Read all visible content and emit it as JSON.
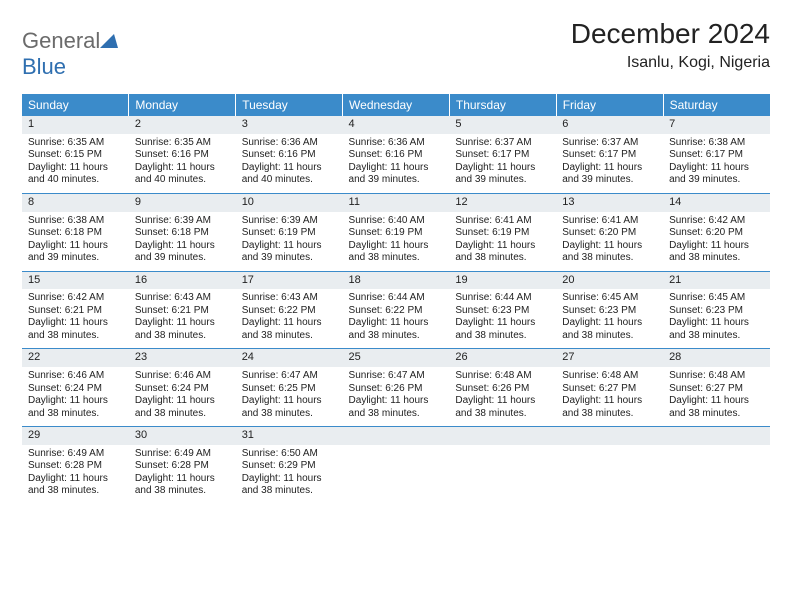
{
  "brand": {
    "part1": "General",
    "part2": "Blue"
  },
  "title": "December 2024",
  "location": "Isanlu, Kogi, Nigeria",
  "colors": {
    "header_bg": "#3b8bca",
    "header_fg": "#ffffff",
    "daynum_bg": "#e9edf0",
    "row_border": "#3b8bca",
    "brand_gray": "#6b6b6b",
    "brand_blue": "#2f6fb0"
  },
  "fonts": {
    "title_size": 28,
    "location_size": 16,
    "header_size": 12,
    "cell_size": 10
  },
  "day_headers": [
    "Sunday",
    "Monday",
    "Tuesday",
    "Wednesday",
    "Thursday",
    "Friday",
    "Saturday"
  ],
  "weeks": [
    [
      {
        "n": "1",
        "sr": "Sunrise: 6:35 AM",
        "ss": "Sunset: 6:15 PM",
        "d1": "Daylight: 11 hours",
        "d2": "and 40 minutes."
      },
      {
        "n": "2",
        "sr": "Sunrise: 6:35 AM",
        "ss": "Sunset: 6:16 PM",
        "d1": "Daylight: 11 hours",
        "d2": "and 40 minutes."
      },
      {
        "n": "3",
        "sr": "Sunrise: 6:36 AM",
        "ss": "Sunset: 6:16 PM",
        "d1": "Daylight: 11 hours",
        "d2": "and 40 minutes."
      },
      {
        "n": "4",
        "sr": "Sunrise: 6:36 AM",
        "ss": "Sunset: 6:16 PM",
        "d1": "Daylight: 11 hours",
        "d2": "and 39 minutes."
      },
      {
        "n": "5",
        "sr": "Sunrise: 6:37 AM",
        "ss": "Sunset: 6:17 PM",
        "d1": "Daylight: 11 hours",
        "d2": "and 39 minutes."
      },
      {
        "n": "6",
        "sr": "Sunrise: 6:37 AM",
        "ss": "Sunset: 6:17 PM",
        "d1": "Daylight: 11 hours",
        "d2": "and 39 minutes."
      },
      {
        "n": "7",
        "sr": "Sunrise: 6:38 AM",
        "ss": "Sunset: 6:17 PM",
        "d1": "Daylight: 11 hours",
        "d2": "and 39 minutes."
      }
    ],
    [
      {
        "n": "8",
        "sr": "Sunrise: 6:38 AM",
        "ss": "Sunset: 6:18 PM",
        "d1": "Daylight: 11 hours",
        "d2": "and 39 minutes."
      },
      {
        "n": "9",
        "sr": "Sunrise: 6:39 AM",
        "ss": "Sunset: 6:18 PM",
        "d1": "Daylight: 11 hours",
        "d2": "and 39 minutes."
      },
      {
        "n": "10",
        "sr": "Sunrise: 6:39 AM",
        "ss": "Sunset: 6:19 PM",
        "d1": "Daylight: 11 hours",
        "d2": "and 39 minutes."
      },
      {
        "n": "11",
        "sr": "Sunrise: 6:40 AM",
        "ss": "Sunset: 6:19 PM",
        "d1": "Daylight: 11 hours",
        "d2": "and 38 minutes."
      },
      {
        "n": "12",
        "sr": "Sunrise: 6:41 AM",
        "ss": "Sunset: 6:19 PM",
        "d1": "Daylight: 11 hours",
        "d2": "and 38 minutes."
      },
      {
        "n": "13",
        "sr": "Sunrise: 6:41 AM",
        "ss": "Sunset: 6:20 PM",
        "d1": "Daylight: 11 hours",
        "d2": "and 38 minutes."
      },
      {
        "n": "14",
        "sr": "Sunrise: 6:42 AM",
        "ss": "Sunset: 6:20 PM",
        "d1": "Daylight: 11 hours",
        "d2": "and 38 minutes."
      }
    ],
    [
      {
        "n": "15",
        "sr": "Sunrise: 6:42 AM",
        "ss": "Sunset: 6:21 PM",
        "d1": "Daylight: 11 hours",
        "d2": "and 38 minutes."
      },
      {
        "n": "16",
        "sr": "Sunrise: 6:43 AM",
        "ss": "Sunset: 6:21 PM",
        "d1": "Daylight: 11 hours",
        "d2": "and 38 minutes."
      },
      {
        "n": "17",
        "sr": "Sunrise: 6:43 AM",
        "ss": "Sunset: 6:22 PM",
        "d1": "Daylight: 11 hours",
        "d2": "and 38 minutes."
      },
      {
        "n": "18",
        "sr": "Sunrise: 6:44 AM",
        "ss": "Sunset: 6:22 PM",
        "d1": "Daylight: 11 hours",
        "d2": "and 38 minutes."
      },
      {
        "n": "19",
        "sr": "Sunrise: 6:44 AM",
        "ss": "Sunset: 6:23 PM",
        "d1": "Daylight: 11 hours",
        "d2": "and 38 minutes."
      },
      {
        "n": "20",
        "sr": "Sunrise: 6:45 AM",
        "ss": "Sunset: 6:23 PM",
        "d1": "Daylight: 11 hours",
        "d2": "and 38 minutes."
      },
      {
        "n": "21",
        "sr": "Sunrise: 6:45 AM",
        "ss": "Sunset: 6:23 PM",
        "d1": "Daylight: 11 hours",
        "d2": "and 38 minutes."
      }
    ],
    [
      {
        "n": "22",
        "sr": "Sunrise: 6:46 AM",
        "ss": "Sunset: 6:24 PM",
        "d1": "Daylight: 11 hours",
        "d2": "and 38 minutes."
      },
      {
        "n": "23",
        "sr": "Sunrise: 6:46 AM",
        "ss": "Sunset: 6:24 PM",
        "d1": "Daylight: 11 hours",
        "d2": "and 38 minutes."
      },
      {
        "n": "24",
        "sr": "Sunrise: 6:47 AM",
        "ss": "Sunset: 6:25 PM",
        "d1": "Daylight: 11 hours",
        "d2": "and 38 minutes."
      },
      {
        "n": "25",
        "sr": "Sunrise: 6:47 AM",
        "ss": "Sunset: 6:26 PM",
        "d1": "Daylight: 11 hours",
        "d2": "and 38 minutes."
      },
      {
        "n": "26",
        "sr": "Sunrise: 6:48 AM",
        "ss": "Sunset: 6:26 PM",
        "d1": "Daylight: 11 hours",
        "d2": "and 38 minutes."
      },
      {
        "n": "27",
        "sr": "Sunrise: 6:48 AM",
        "ss": "Sunset: 6:27 PM",
        "d1": "Daylight: 11 hours",
        "d2": "and 38 minutes."
      },
      {
        "n": "28",
        "sr": "Sunrise: 6:48 AM",
        "ss": "Sunset: 6:27 PM",
        "d1": "Daylight: 11 hours",
        "d2": "and 38 minutes."
      }
    ],
    [
      {
        "n": "29",
        "sr": "Sunrise: 6:49 AM",
        "ss": "Sunset: 6:28 PM",
        "d1": "Daylight: 11 hours",
        "d2": "and 38 minutes."
      },
      {
        "n": "30",
        "sr": "Sunrise: 6:49 AM",
        "ss": "Sunset: 6:28 PM",
        "d1": "Daylight: 11 hours",
        "d2": "and 38 minutes."
      },
      {
        "n": "31",
        "sr": "Sunrise: 6:50 AM",
        "ss": "Sunset: 6:29 PM",
        "d1": "Daylight: 11 hours",
        "d2": "and 38 minutes."
      },
      {
        "empty": true
      },
      {
        "empty": true
      },
      {
        "empty": true
      },
      {
        "empty": true
      }
    ]
  ]
}
